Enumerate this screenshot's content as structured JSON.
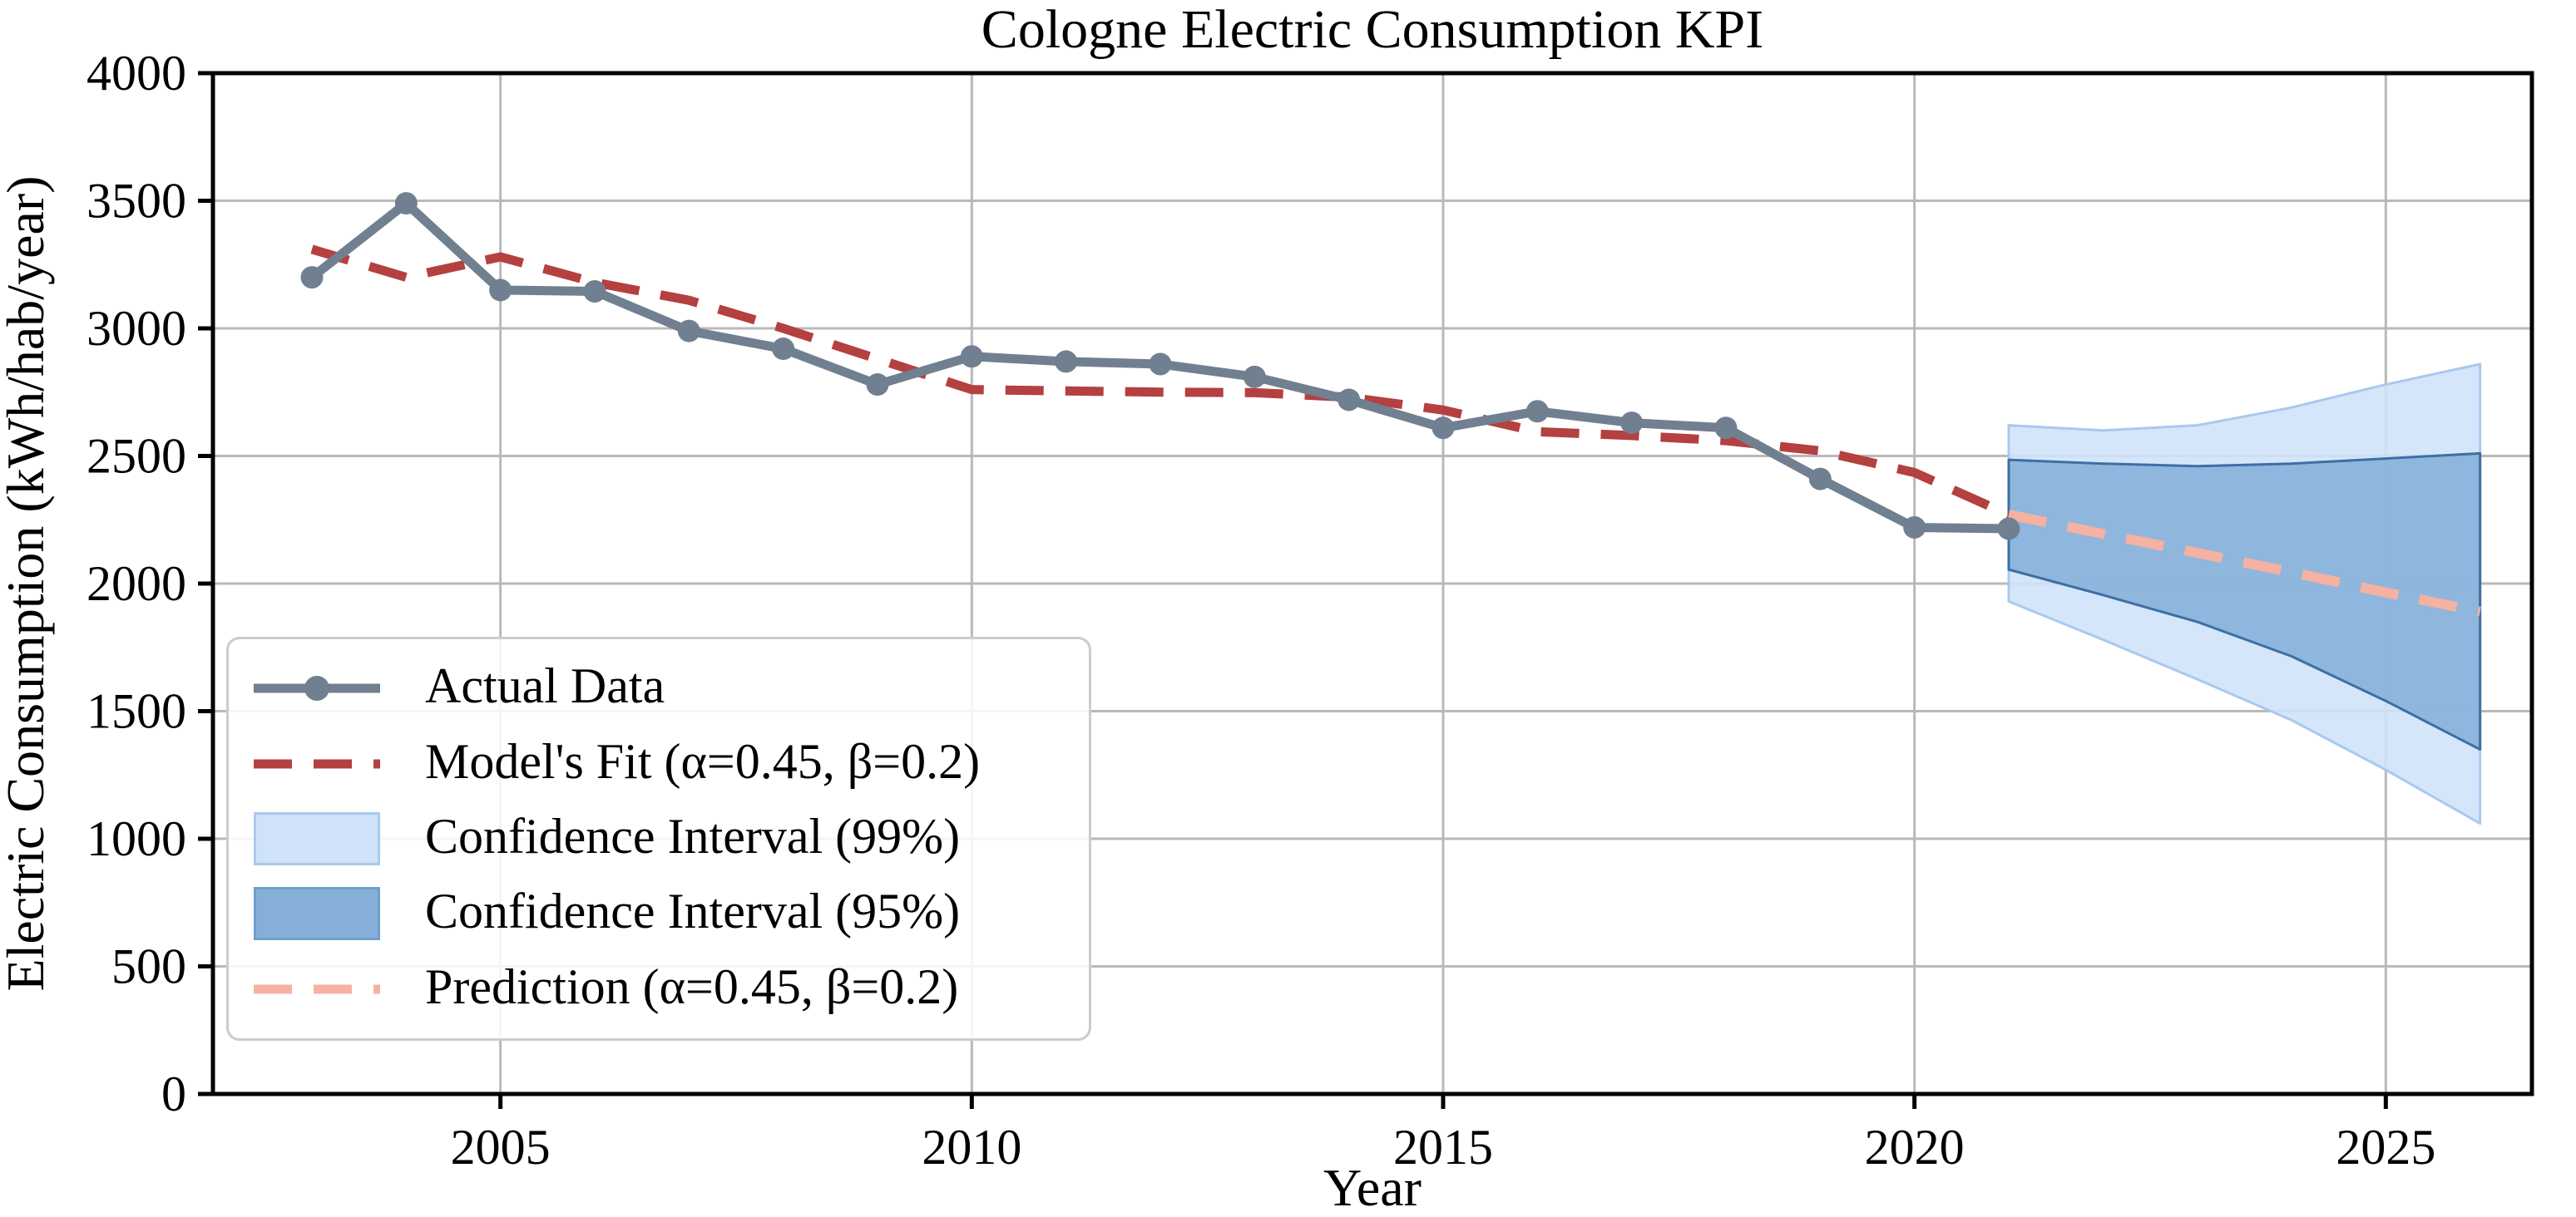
{
  "title": "Cologne Electric Consumption KPI",
  "axes": {
    "xlabel": "Year",
    "ylabel": "Electric Consumption (kWh/hab/year)",
    "x_ticks": [
      2005,
      2010,
      2015,
      2020,
      2025
    ],
    "y_ticks": [
      0,
      500,
      1000,
      1500,
      2000,
      2500,
      3000,
      3500,
      4000
    ],
    "xlim": [
      2001.95,
      2026.55
    ],
    "ylim": [
      0,
      4000
    ],
    "grid": true
  },
  "colors": {
    "actual": "#708090",
    "fit": "#b44040",
    "prediction": "#f5b1a2",
    "ci99_fill": "#cfe2f9",
    "ci99_edge": "#a8c9f0",
    "ci95_fill": "#85afd7",
    "ci95_edge": "#3d6fa5",
    "grid": "#b9b9b9",
    "spine": "#000000",
    "legend_border": "#cccccc"
  },
  "legend": {
    "items": [
      {
        "label": "Actual Data",
        "swatch": "line-marker"
      },
      {
        "label": "Model's Fit (α=0.45, β=0.2)",
        "swatch": "dashed"
      },
      {
        "label": "Confidence Interval (99%)",
        "swatch": "band99"
      },
      {
        "label": "Confidence Interval (95%)",
        "swatch": "band95"
      },
      {
        "label": "Prediction (α=0.45, β=0.2)",
        "swatch": "dashed-salmon"
      }
    ]
  },
  "chart_data": {
    "type": "line",
    "title": "Cologne Electric Consumption KPI",
    "xlabel": "Year",
    "ylabel": "Electric Consumption (kWh/hab/year)",
    "xlim": [
      2001.95,
      2026.55
    ],
    "ylim": [
      0,
      4000
    ],
    "legend_position": "lower left",
    "series": [
      {
        "name": "Actual Data",
        "style": "solid-line-with-markers",
        "color": "#708090",
        "x": [
          2003,
          2004,
          2005,
          2006,
          2007,
          2008,
          2009,
          2010,
          2011,
          2012,
          2013,
          2014,
          2015,
          2016,
          2017,
          2018,
          2019,
          2020,
          2021
        ],
        "values": [
          3200,
          3490,
          3150,
          3145,
          2990,
          2920,
          2780,
          2890,
          2870,
          2860,
          2810,
          2720,
          2610,
          2675,
          2630,
          2610,
          2410,
          2220,
          2215
        ]
      },
      {
        "name": "Model's Fit (α=0.45, β=0.2)",
        "style": "dashed-line",
        "color": "#b44040",
        "x": [
          2003,
          2004,
          2005,
          2006,
          2007,
          2008,
          2009,
          2010,
          2011,
          2012,
          2013,
          2014,
          2015,
          2016,
          2017,
          2018,
          2019,
          2020,
          2021
        ],
        "values": [
          3310,
          3200,
          3280,
          3180,
          3110,
          3000,
          2880,
          2760,
          2755,
          2750,
          2748,
          2730,
          2680,
          2595,
          2580,
          2560,
          2520,
          2435,
          2270
        ]
      },
      {
        "name": "Confidence Interval (99%)",
        "style": "band",
        "fill": "#cfe2f9",
        "edge": "#a8c9f0",
        "x": [
          2021,
          2022,
          2023,
          2024,
          2025,
          2026
        ],
        "upper": [
          2620,
          2600,
          2620,
          2690,
          2780,
          2860
        ],
        "lower": [
          1930,
          1780,
          1625,
          1465,
          1270,
          1060
        ]
      },
      {
        "name": "Confidence Interval (95%)",
        "style": "band",
        "fill": "#85afd7",
        "edge": "#3d6fa5",
        "x": [
          2021,
          2022,
          2023,
          2024,
          2025,
          2026
        ],
        "upper": [
          2485,
          2470,
          2460,
          2470,
          2490,
          2510
        ],
        "lower": [
          2055,
          1955,
          1850,
          1715,
          1540,
          1350
        ]
      },
      {
        "name": "Prediction (α=0.45, β=0.2)",
        "style": "dashed-line",
        "color": "#f5b1a2",
        "x": [
          2021,
          2022,
          2023,
          2024,
          2025,
          2026
        ],
        "values": [
          2270,
          2195,
          2120,
          2045,
          1965,
          1890
        ]
      }
    ]
  }
}
